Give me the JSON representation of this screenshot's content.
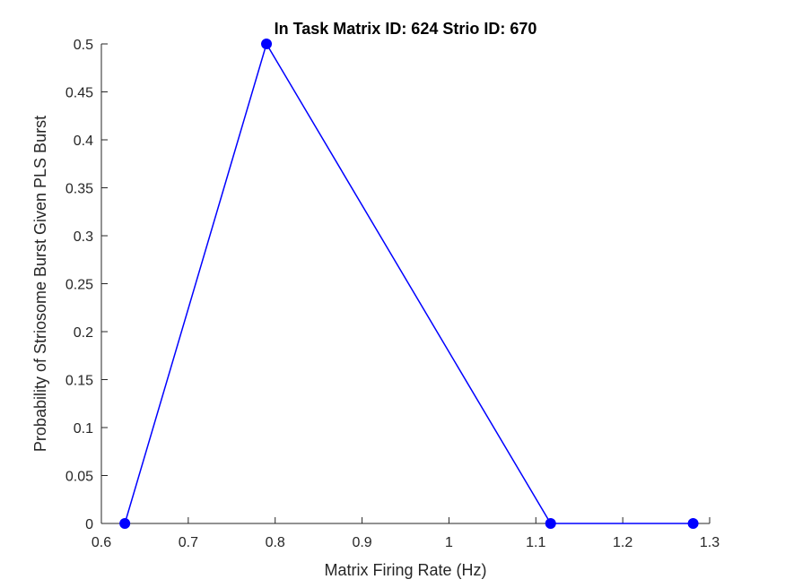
{
  "chart_data": {
    "type": "line",
    "title": "In Task Matrix ID: 624 Strio ID: 670",
    "xlabel": "Matrix Firing Rate (Hz)",
    "ylabel": "Probability of Striosome Burst Given PLS Burst",
    "xlim": [
      0.6,
      1.3
    ],
    "ylim": [
      0,
      0.5
    ],
    "xticks": [
      0.6,
      0.7,
      0.8,
      0.9,
      1,
      1.1,
      1.2,
      1.3
    ],
    "xtick_labels": [
      "0.6",
      "0.7",
      "0.8",
      "0.9",
      "1",
      "1.1",
      "1.2",
      "1.3"
    ],
    "yticks": [
      0,
      0.05,
      0.1,
      0.15,
      0.2,
      0.25,
      0.3,
      0.35,
      0.4,
      0.45,
      0.5
    ],
    "ytick_labels": [
      "0",
      "0.05",
      "0.1",
      "0.15",
      "0.2",
      "0.25",
      "0.3",
      "0.35",
      "0.4",
      "0.45",
      "0.5"
    ],
    "grid": false,
    "series": [
      {
        "x": [
          0.627,
          0.79,
          1.117,
          1.281
        ],
        "y": [
          0,
          0.5,
          0,
          0
        ],
        "color": "#0000ff",
        "marker": "circle"
      }
    ]
  }
}
